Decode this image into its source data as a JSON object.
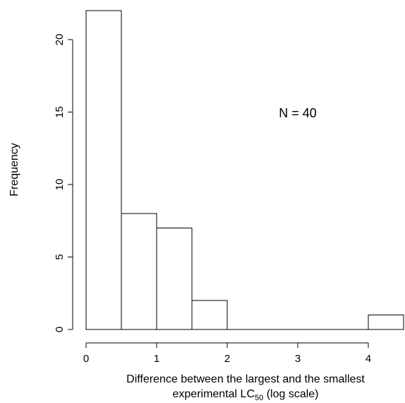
{
  "chart_data": {
    "type": "bar",
    "subtype": "histogram",
    "bins": [
      {
        "x0": 0.0,
        "x1": 0.5,
        "count": 22
      },
      {
        "x0": 0.5,
        "x1": 1.0,
        "count": 8
      },
      {
        "x0": 1.0,
        "x1": 1.5,
        "count": 7
      },
      {
        "x0": 1.5,
        "x1": 2.0,
        "count": 2
      },
      {
        "x0": 2.0,
        "x1": 2.5,
        "count": 0
      },
      {
        "x0": 2.5,
        "x1": 3.0,
        "count": 0
      },
      {
        "x0": 3.0,
        "x1": 3.5,
        "count": 0
      },
      {
        "x0": 3.5,
        "x1": 4.0,
        "count": 0
      },
      {
        "x0": 4.0,
        "x1": 4.5,
        "count": 1
      }
    ],
    "xlabel_line1": "Difference between the largest and the smallest",
    "xlabel_line2_pre": "experimental LC",
    "xlabel_line2_sub": "50",
    "xlabel_line2_post": " (log scale)",
    "ylabel": "Frequency",
    "xlim": [
      0,
      4.5
    ],
    "ylim": [
      0,
      22
    ],
    "x_ticks": [
      0,
      1,
      2,
      3,
      4
    ],
    "y_ticks": [
      0,
      5,
      10,
      15,
      20
    ],
    "annotation": "N = 40",
    "grid": false,
    "bar_fill": "#ffffff",
    "bar_stroke": "#000000"
  }
}
